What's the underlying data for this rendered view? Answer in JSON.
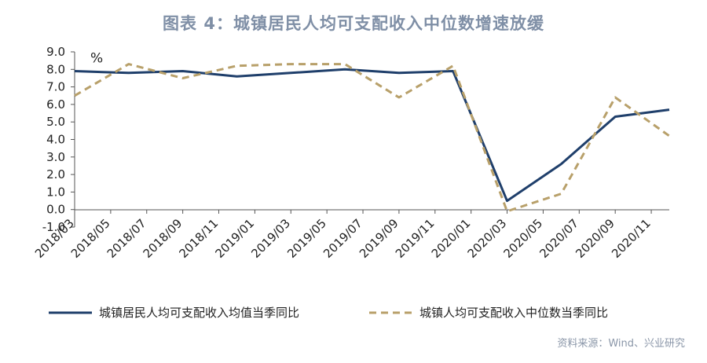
{
  "chart_data": {
    "type": "line",
    "title": "图表 4：城镇居民人均可支配收入中位数增速放缓",
    "unit_label": "%",
    "source": "资料来源：Wind、兴业研究",
    "ylim": [
      -1.0,
      9.0
    ],
    "yticks": [
      "9.0",
      "8.0",
      "7.0",
      "6.0",
      "5.0",
      "4.0",
      "3.0",
      "2.0",
      "1.0",
      "0.0",
      "-1.0"
    ],
    "grid": false,
    "legend_position": "bottom",
    "x_labels": [
      "2018/03",
      "2018/05",
      "2018/07",
      "2018/09",
      "2018/11",
      "2019/01",
      "2019/03",
      "2019/05",
      "2019/07",
      "2019/09",
      "2019/11",
      "2020/01",
      "2020/03",
      "2020/05",
      "2020/07",
      "2020/09",
      "2020/11"
    ],
    "series": [
      {
        "name": "城镇居民人均可支配收入均值当季同比",
        "color": "#1f3f6b",
        "style": "solid",
        "points": [
          {
            "x": "2018/03",
            "y": 7.9
          },
          {
            "x": "2018/06",
            "y": 7.8
          },
          {
            "x": "2018/09",
            "y": 7.9
          },
          {
            "x": "2018/12",
            "y": 7.6
          },
          {
            "x": "2019/03",
            "y": 7.8
          },
          {
            "x": "2019/06",
            "y": 8.0
          },
          {
            "x": "2019/09",
            "y": 7.8
          },
          {
            "x": "2019/12",
            "y": 7.9
          },
          {
            "x": "2020/03",
            "y": 0.5
          },
          {
            "x": "2020/06",
            "y": 2.6
          },
          {
            "x": "2020/09",
            "y": 5.3
          },
          {
            "x": "2020/12",
            "y": 5.7
          }
        ]
      },
      {
        "name": "城镇人均可支配收入中位数当季同比",
        "color": "#b8a06a",
        "style": "dashed",
        "points": [
          {
            "x": "2018/03",
            "y": 6.5
          },
          {
            "x": "2018/06",
            "y": 8.3
          },
          {
            "x": "2018/09",
            "y": 7.5
          },
          {
            "x": "2018/12",
            "y": 8.2
          },
          {
            "x": "2019/03",
            "y": 8.3
          },
          {
            "x": "2019/06",
            "y": 8.3
          },
          {
            "x": "2019/09",
            "y": 6.4
          },
          {
            "x": "2019/12",
            "y": 8.2
          },
          {
            "x": "2020/03",
            "y": -0.1
          },
          {
            "x": "2020/06",
            "y": 0.9
          },
          {
            "x": "2020/09",
            "y": 6.4
          },
          {
            "x": "2020/12",
            "y": 4.2
          }
        ]
      }
    ]
  }
}
